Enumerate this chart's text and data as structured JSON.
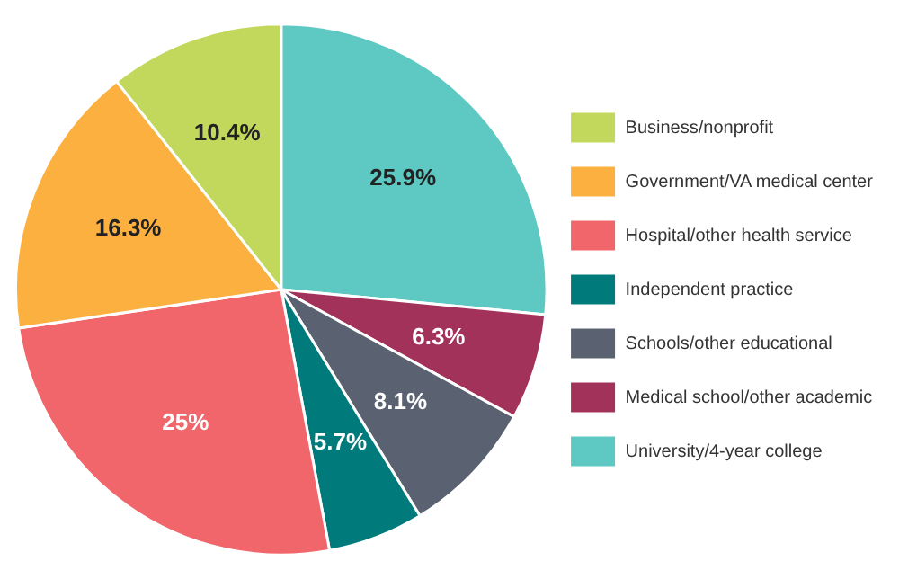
{
  "chart_data": {
    "type": "pie",
    "categories": [
      "University/4-year college",
      "Medical school/other academic",
      "Schools/other educational",
      "Independent practice",
      "Hospital/other health service",
      "Government/VA medical center",
      "Business/nonprofit"
    ],
    "values": [
      25.9,
      6.3,
      8.1,
      5.7,
      25,
      16.3,
      10.4
    ],
    "value_labels": [
      "25.9%",
      "6.3%",
      "8.1%",
      "5.7%",
      "25%",
      "16.3%",
      "10.4%"
    ],
    "colors": [
      "#5ec8c3",
      "#a3325a",
      "#5a6272",
      "#007a7a",
      "#f0666b",
      "#fbb040",
      "#c2d85c"
    ],
    "legend": "right"
  }
}
